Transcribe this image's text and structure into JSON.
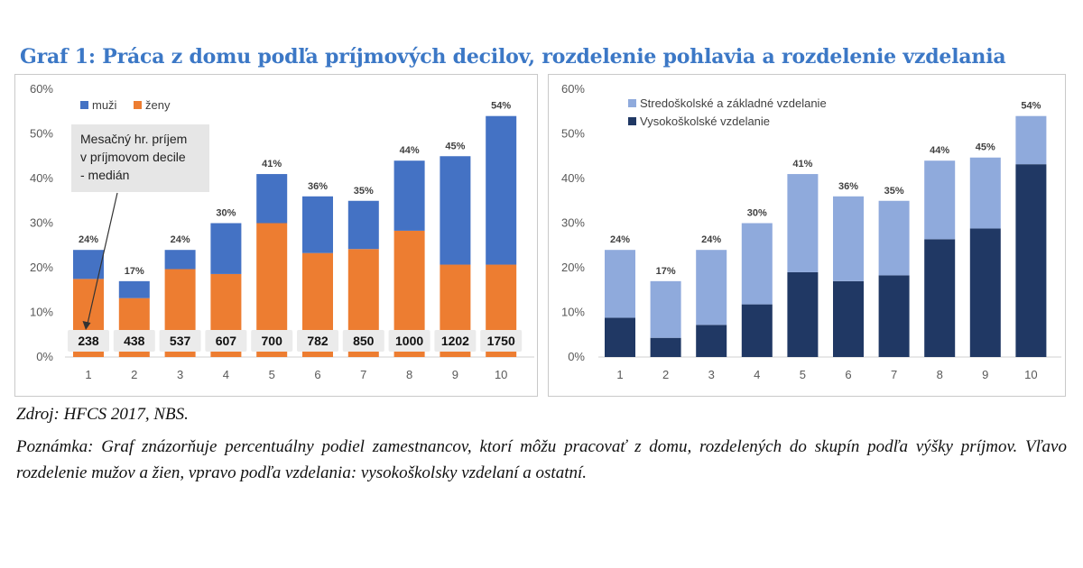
{
  "title": "Graf 1: Práca z domu podľa príjmových decilov, rozdelenie pohlavia a rozdelenie vzdelania",
  "source": "Zdroj: HFCS 2017, NBS.",
  "note": "Poznámka: Graf znázorňuje percentuálny podiel zamestnancov, ktorí môžu pracovať z domu, rozdelených do skupín podľa výšky príjmov. Vľavo rozdelenie mužov a žien, vpravo podľa vzdelania: vysokoškolsky vzdelaní a ostatní.",
  "chart_data": [
    {
      "type": "bar",
      "stacked": true,
      "categories": [
        "1",
        "2",
        "3",
        "4",
        "5",
        "6",
        "7",
        "8",
        "9",
        "10"
      ],
      "y_ticks": [
        "0%",
        "10%",
        "20%",
        "30%",
        "40%",
        "50%",
        "60%"
      ],
      "ylim": [
        0,
        60
      ],
      "series": [
        {
          "name": "ženy",
          "color": "#ed7d31",
          "values": [
            17.5,
            13.2,
            19.7,
            18.6,
            30.0,
            23.3,
            24.2,
            28.3,
            20.7,
            20.7
          ]
        },
        {
          "name": "muži",
          "color": "#4472c4",
          "values": [
            6.5,
            3.8,
            4.3,
            11.4,
            11.0,
            12.7,
            10.8,
            15.7,
            24.3,
            33.3
          ]
        }
      ],
      "total_labels": [
        "24%",
        "17%",
        "24%",
        "30%",
        "41%",
        "36%",
        "35%",
        "44%",
        "45%",
        "54%"
      ],
      "income_labels": [
        "238",
        "438",
        "537",
        "607",
        "700",
        "782",
        "850",
        "1000",
        "1202",
        "1750"
      ],
      "annotation": [
        "Mesačný hr. príjem",
        "v príjmovom decile",
        "- medián"
      ],
      "legend": "top-left"
    },
    {
      "type": "bar",
      "stacked": true,
      "categories": [
        "1",
        "2",
        "3",
        "4",
        "5",
        "6",
        "7",
        "8",
        "9",
        "10"
      ],
      "y_ticks": [
        "0%",
        "10%",
        "20%",
        "30%",
        "40%",
        "50%",
        "60%"
      ],
      "ylim": [
        0,
        60
      ],
      "series": [
        {
          "name": "Vysokoškolské vzdelanie",
          "color": "#203864",
          "values": [
            8.8,
            4.3,
            7.2,
            11.8,
            19.0,
            17.0,
            18.3,
            26.4,
            28.8,
            43.2
          ]
        },
        {
          "name": "Stredoškolské a základné vzdelanie",
          "color": "#8faadc",
          "values": [
            15.2,
            12.7,
            16.8,
            18.2,
            22.0,
            19.0,
            16.7,
            17.6,
            15.9,
            10.8
          ]
        }
      ],
      "total_labels": [
        "24%",
        "17%",
        "24%",
        "30%",
        "41%",
        "36%",
        "35%",
        "44%",
        "45%",
        "54%"
      ],
      "legend": "top-left"
    }
  ]
}
